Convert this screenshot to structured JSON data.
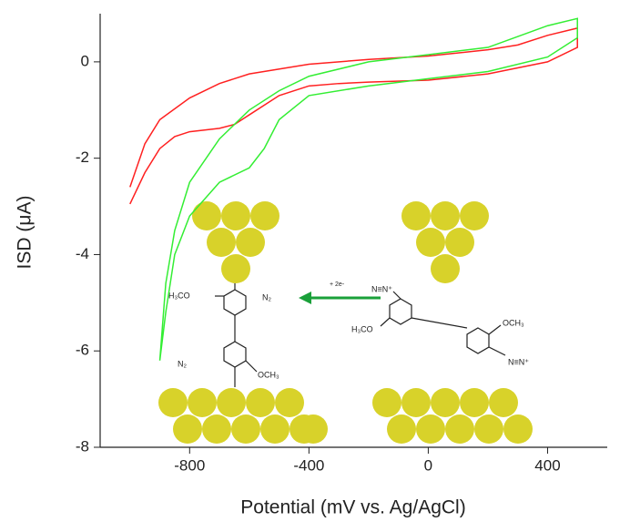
{
  "chart_data": {
    "type": "line",
    "x_label": "Potential (mV vs. Ag/AgCl)",
    "y_label": "ISD (μA)",
    "xlim": [
      -1100,
      600
    ],
    "ylim": [
      -8,
      1
    ],
    "xticks": [
      -800,
      -400,
      0,
      400
    ],
    "yticks": [
      0,
      -2,
      -4,
      -6,
      -8
    ],
    "series": [
      {
        "color": "#ff2020",
        "x": [
          -1000,
          -950,
          -900,
          -850,
          -800,
          -700,
          -650,
          -600,
          -500,
          -400,
          -300,
          -200,
          0,
          200,
          400,
          500,
          500,
          400,
          300,
          200,
          0,
          -200,
          -400,
          -600,
          -700,
          -800,
          -900,
          -950,
          -1000
        ],
        "values": [
          -2.95,
          -2.3,
          -1.8,
          -1.55,
          -1.45,
          -1.38,
          -1.3,
          -1.1,
          -0.7,
          -0.5,
          -0.45,
          -0.42,
          -0.38,
          -0.25,
          0,
          0.3,
          0.7,
          0.55,
          0.35,
          0.25,
          0.12,
          0.05,
          -0.05,
          -0.25,
          -0.45,
          -0.75,
          -1.2,
          -1.7,
          -2.6
        ]
      },
      {
        "color": "#33ee33",
        "x": [
          -900,
          -880,
          -850,
          -800,
          -700,
          -600,
          -550,
          -500,
          -400,
          -200,
          0,
          200,
          400,
          500,
          500,
          400,
          200,
          0,
          -200,
          -400,
          -500,
          -600,
          -700,
          -800,
          -850,
          -880,
          -900
        ],
        "values": [
          -6.2,
          -5.2,
          -4.0,
          -3.2,
          -2.5,
          -2.2,
          -1.8,
          -1.2,
          -0.7,
          -0.5,
          -0.35,
          -0.2,
          0.1,
          0.5,
          0.9,
          0.75,
          0.3,
          0.15,
          0,
          -0.3,
          -0.6,
          -1.0,
          -1.6,
          -2.5,
          -3.5,
          -4.6,
          -6.2
        ]
      }
    ],
    "annotations": [
      "H₃CO",
      "N₂",
      "N₂",
      "OCH₃",
      "+ 2e-",
      "N≡N⁺",
      "H₃CO",
      "OCH₃",
      "N≡N⁺"
    ]
  }
}
